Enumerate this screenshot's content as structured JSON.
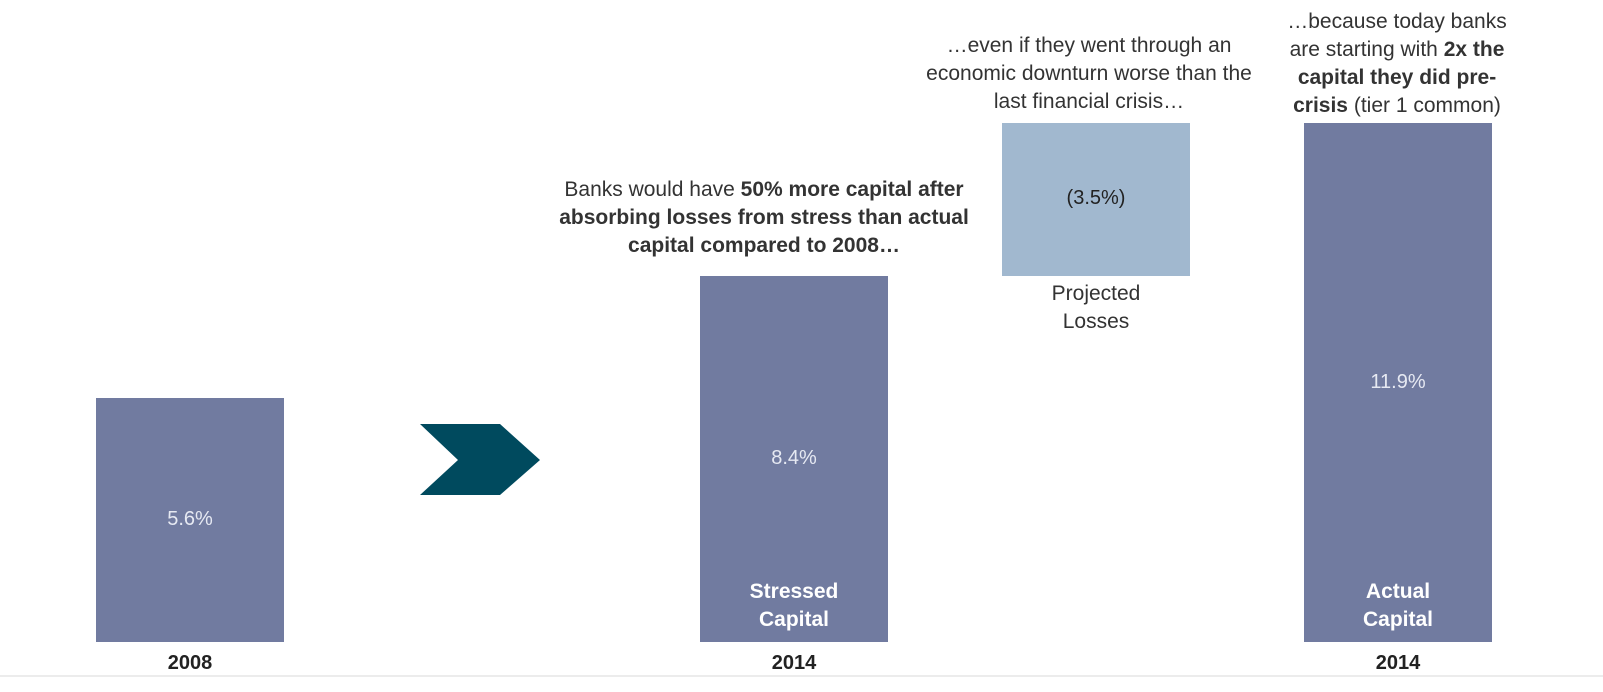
{
  "chart_data": {
    "type": "waterfall",
    "categories": [
      "2008",
      "2014",
      null,
      "2014"
    ],
    "values": [
      5.6,
      8.4,
      -3.5,
      11.9
    ],
    "value_labels": [
      "5.6%",
      "8.4%",
      "(3.5%)",
      "11.9%"
    ],
    "bar_labels": [
      null,
      "Stressed Capital",
      "Projected Losses",
      "Actual Capital"
    ],
    "colors": [
      "#717ba0",
      "#717ba0",
      "#a1b8cf",
      "#717ba0"
    ],
    "annotations": [
      [
        {
          "text": "Banks would have ",
          "bold": false
        },
        {
          "text": "50% more capital after absorbing losses from stress than actual capital compared to 2008…",
          "bold": true
        }
      ],
      [
        {
          "text": "…even if they went through an economic downturn worse than the last financial crisis…",
          "bold": false
        }
      ],
      [
        {
          "text": "…because today banks are starting with ",
          "bold": false
        },
        {
          "text": "2x the capital they did pre-crisis",
          "bold": true
        },
        {
          "text": " (tier 1 common)",
          "bold": false
        }
      ]
    ]
  }
}
